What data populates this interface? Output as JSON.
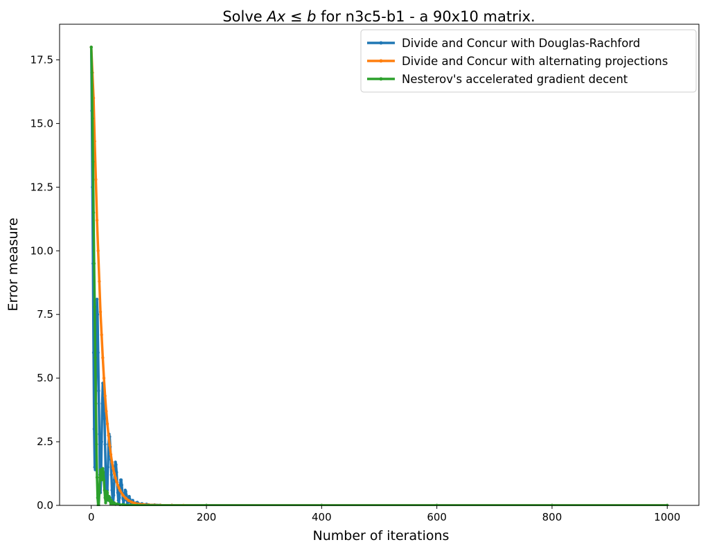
{
  "chart_data": {
    "type": "line",
    "title_prefix": "Solve ",
    "title_math_A": "Ax",
    "title_math_le": " ≤ ",
    "title_math_b": "b",
    "title_suffix": " for n3c5-b1 - a 90x10 matrix.",
    "xlabel": "Number of iterations",
    "ylabel": "Error measure",
    "xlim": [
      -55,
      1055
    ],
    "ylim": [
      0,
      18.9
    ],
    "xticks": [
      0,
      200,
      400,
      600,
      800,
      1000
    ],
    "xtick_labels": [
      "0",
      "200",
      "400",
      "600",
      "800",
      "1000"
    ],
    "yticks": [
      0,
      2.5,
      5,
      7.5,
      10,
      12.5,
      15,
      17.5
    ],
    "ytick_labels": [
      "0.0",
      "2.5",
      "5.0",
      "7.5",
      "10.0",
      "12.5",
      "15.0",
      "17.5"
    ],
    "grid": false,
    "legend_position": "top-right",
    "series": [
      {
        "name": "Divide and Concur with Douglas-Rachford",
        "color": "#1f77b4",
        "points": [
          [
            0,
            18.0
          ],
          [
            1,
            15.5
          ],
          [
            2,
            12.5
          ],
          [
            3,
            9.5
          ],
          [
            4,
            6.0
          ],
          [
            5,
            3.0
          ],
          [
            6,
            1.5
          ],
          [
            7,
            1.4
          ],
          [
            8,
            4.0
          ],
          [
            9,
            6.5
          ],
          [
            10,
            8.1
          ],
          [
            11,
            7.5
          ],
          [
            12,
            6.0
          ],
          [
            13,
            4.5
          ],
          [
            14,
            2.8
          ],
          [
            15,
            1.2
          ],
          [
            16,
            0.5
          ],
          [
            17,
            1.0
          ],
          [
            18,
            2.5
          ],
          [
            19,
            4.0
          ],
          [
            20,
            4.8
          ],
          [
            21,
            4.7
          ],
          [
            22,
            4.2
          ],
          [
            23,
            3.4
          ],
          [
            24,
            2.4
          ],
          [
            25,
            1.3
          ],
          [
            26,
            0.5
          ],
          [
            27,
            0.2
          ],
          [
            28,
            0.6
          ],
          [
            29,
            1.5
          ],
          [
            30,
            2.4
          ],
          [
            31,
            2.8
          ],
          [
            32,
            2.7
          ],
          [
            33,
            2.3
          ],
          [
            34,
            1.8
          ],
          [
            35,
            1.2
          ],
          [
            36,
            0.6
          ],
          [
            37,
            0.2
          ],
          [
            38,
            0.1
          ],
          [
            39,
            0.4
          ],
          [
            40,
            1.0
          ],
          [
            41,
            1.5
          ],
          [
            42,
            1.7
          ],
          [
            43,
            1.6
          ],
          [
            44,
            1.3
          ],
          [
            45,
            0.9
          ],
          [
            46,
            0.5
          ],
          [
            47,
            0.2
          ],
          [
            48,
            0.1
          ],
          [
            49,
            0.3
          ],
          [
            50,
            0.7
          ],
          [
            51,
            1.0
          ],
          [
            52,
            1.0
          ],
          [
            53,
            0.8
          ],
          [
            54,
            0.5
          ],
          [
            55,
            0.25
          ],
          [
            56,
            0.1
          ],
          [
            57,
            0.2
          ],
          [
            58,
            0.4
          ],
          [
            59,
            0.6
          ],
          [
            60,
            0.55
          ],
          [
            61,
            0.4
          ],
          [
            62,
            0.2
          ],
          [
            63,
            0.08
          ],
          [
            64,
            0.15
          ],
          [
            65,
            0.3
          ],
          [
            66,
            0.35
          ],
          [
            67,
            0.25
          ],
          [
            68,
            0.12
          ],
          [
            69,
            0.05
          ],
          [
            70,
            0.12
          ],
          [
            72,
            0.2
          ],
          [
            74,
            0.1
          ],
          [
            76,
            0.04
          ],
          [
            78,
            0.1
          ],
          [
            80,
            0.12
          ],
          [
            84,
            0.05
          ],
          [
            88,
            0.07
          ],
          [
            92,
            0.03
          ],
          [
            96,
            0.05
          ],
          [
            100,
            0.02
          ],
          [
            110,
            0.02
          ],
          [
            120,
            0.01
          ],
          [
            140,
            0.005
          ],
          [
            200,
            0.002
          ],
          [
            400,
            0.0
          ],
          [
            600,
            0.0
          ],
          [
            800,
            0.0
          ],
          [
            1000,
            0.0
          ]
        ]
      },
      {
        "name": "Divide and Concur with alternating projections",
        "color": "#ff7f0e",
        "points": [
          [
            0,
            18.0
          ],
          [
            2,
            17.0
          ],
          [
            4,
            16.0
          ],
          [
            6,
            14.3
          ],
          [
            8,
            12.8
          ],
          [
            10,
            11.2
          ],
          [
            12,
            10.0
          ],
          [
            14,
            8.8
          ],
          [
            16,
            7.6
          ],
          [
            18,
            6.7
          ],
          [
            20,
            5.8
          ],
          [
            22,
            5.0
          ],
          [
            24,
            4.3
          ],
          [
            26,
            3.7
          ],
          [
            28,
            3.2
          ],
          [
            30,
            2.75
          ],
          [
            32,
            2.35
          ],
          [
            34,
            2.0
          ],
          [
            36,
            1.7
          ],
          [
            38,
            1.45
          ],
          [
            40,
            1.25
          ],
          [
            42,
            1.08
          ],
          [
            44,
            0.93
          ],
          [
            46,
            0.8
          ],
          [
            48,
            0.69
          ],
          [
            50,
            0.59
          ],
          [
            55,
            0.4
          ],
          [
            60,
            0.28
          ],
          [
            65,
            0.19
          ],
          [
            70,
            0.13
          ],
          [
            75,
            0.09
          ],
          [
            80,
            0.06
          ],
          [
            90,
            0.035
          ],
          [
            100,
            0.02
          ],
          [
            110,
            0.012
          ],
          [
            120,
            0.008
          ],
          [
            140,
            0.004
          ],
          [
            160,
            0.002
          ],
          [
            200,
            0.001
          ],
          [
            400,
            0.0
          ],
          [
            600,
            0.0
          ],
          [
            800,
            0.0
          ],
          [
            1000,
            0.0
          ]
        ]
      },
      {
        "name": "Nesterov's accelerated gradient decent",
        "color": "#2ca02c",
        "points": [
          [
            0,
            18.0
          ],
          [
            1,
            17.0
          ],
          [
            2,
            15.2
          ],
          [
            3,
            13.5
          ],
          [
            4,
            11.5
          ],
          [
            5,
            9.5
          ],
          [
            6,
            7.8
          ],
          [
            7,
            5.8
          ],
          [
            8,
            4.0
          ],
          [
            9,
            2.4
          ],
          [
            10,
            1.1
          ],
          [
            11,
            0.3
          ],
          [
            12,
            0.0
          ],
          [
            13,
            0.0
          ],
          [
            14,
            0.5
          ],
          [
            15,
            1.1
          ],
          [
            16,
            1.4
          ],
          [
            17,
            1.35
          ],
          [
            18,
            1.0
          ],
          [
            19,
            1.4
          ],
          [
            20,
            1.45
          ],
          [
            21,
            1.3
          ],
          [
            22,
            1.0
          ],
          [
            23,
            0.6
          ],
          [
            24,
            0.3
          ],
          [
            25,
            0.1
          ],
          [
            26,
            0.3
          ],
          [
            27,
            0.55
          ],
          [
            28,
            0.5
          ],
          [
            29,
            0.3
          ],
          [
            30,
            0.2
          ],
          [
            31,
            0.35
          ],
          [
            32,
            0.3
          ],
          [
            33,
            0.15
          ],
          [
            34,
            0.05
          ],
          [
            35,
            0.2
          ],
          [
            36,
            0.15
          ],
          [
            38,
            0.05
          ],
          [
            40,
            0.1
          ],
          [
            42,
            0.04
          ],
          [
            45,
            0.06
          ],
          [
            50,
            0.02
          ],
          [
            55,
            0.03
          ],
          [
            60,
            0.01
          ],
          [
            70,
            0.01
          ],
          [
            80,
            0.005
          ],
          [
            100,
            0.002
          ],
          [
            200,
            0.0
          ],
          [
            400,
            0.0
          ],
          [
            600,
            0.0
          ],
          [
            800,
            0.0
          ],
          [
            1000,
            0.0
          ]
        ]
      }
    ]
  }
}
